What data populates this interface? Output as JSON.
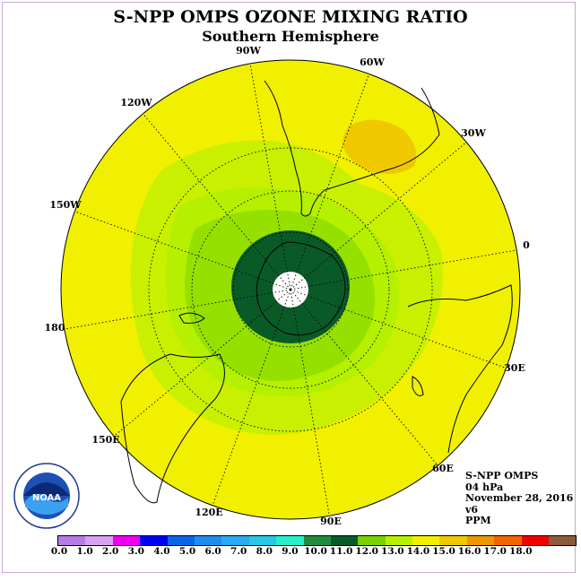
{
  "header": {
    "title": "S-NPP OMPS OZONE MIXING RATIO",
    "subtitle": "Southern Hemisphere"
  },
  "info": {
    "instrument": "S-NPP OMPS",
    "level": "04 hPa",
    "date": "November 28, 2016",
    "version": "v6",
    "units": "PPM"
  },
  "longitude_labels": [
    "90W",
    "60W",
    "30W",
    "0",
    "30E",
    "60E",
    "90E",
    "120E",
    "150E",
    "180",
    "150W",
    "120W"
  ],
  "colorbar": {
    "ticks": [
      "0.0",
      "1.0",
      "2.0",
      "3.0",
      "4.0",
      "5.0",
      "6.0",
      "7.0",
      "8.0",
      "9.0",
      "10.0",
      "11.0",
      "12.0",
      "13.0",
      "14.0",
      "15.0",
      "16.0",
      "17.0",
      "18.0"
    ],
    "colors": [
      "#b57ce8",
      "#d7a0f0",
      "#f000f0",
      "#0000f0",
      "#0a64e6",
      "#1e8cf0",
      "#28aaf0",
      "#28c8e6",
      "#28f0c8",
      "#1e8c3c",
      "#0a5a28",
      "#78d200",
      "#b4f000",
      "#f0f000",
      "#f0c800",
      "#f09600",
      "#f06400",
      "#f00000",
      "#8c5a3c"
    ]
  },
  "logo": {
    "text": "NOAA",
    "ring_text": "NATIONAL OCEANIC AND ATMOSPHERIC ADMINISTRATION · U.S. DEPARTMENT OF COMMERCE"
  },
  "map_colors": {
    "level_13_14": "#f0f000",
    "level_12_13": "#c8f000",
    "level_11_12": "#b4f000",
    "level_10_11": "#96e000",
    "level_9_10": "#0a5a28",
    "level_14_15": "#f0c800",
    "no_data": "#ffffff"
  }
}
